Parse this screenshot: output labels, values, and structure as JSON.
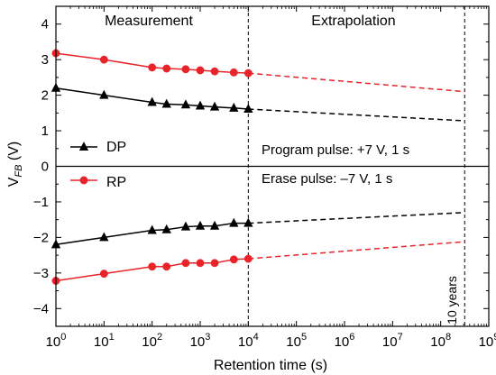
{
  "chart_data": {
    "type": "line",
    "xlabel": "Retention time (s)",
    "ylabel_main": "V",
    "ylabel_sub": "FB",
    "ylabel_unit": " (V)",
    "x_scale": "log",
    "xlim": [
      1,
      1000000000
    ],
    "ylim": [
      -4.5,
      4.5
    ],
    "x_ticks": [
      {
        "base": "10",
        "exp": "0"
      },
      {
        "base": "10",
        "exp": "1"
      },
      {
        "base": "10",
        "exp": "2"
      },
      {
        "base": "10",
        "exp": "3"
      },
      {
        "base": "10",
        "exp": "4"
      },
      {
        "base": "10",
        "exp": "5"
      },
      {
        "base": "10",
        "exp": "6"
      },
      {
        "base": "10",
        "exp": "7"
      },
      {
        "base": "10",
        "exp": "8"
      },
      {
        "base": "10",
        "exp": "9"
      }
    ],
    "y_ticks": [
      "4",
      "3",
      "2",
      "1",
      "0",
      "−1",
      "−2",
      "−3",
      "−4"
    ],
    "y_tick_values": [
      4,
      3,
      2,
      1,
      0,
      -1,
      -2,
      -3,
      -4
    ],
    "grid": false,
    "region_labels": [
      "Measurement",
      "Extrapolation"
    ],
    "divider_x": 10000,
    "ten_year_x": 315360000,
    "ten_year_label": "10 years",
    "annotations": {
      "program": "Program pulse: +7 V, 1 s",
      "erase": "Erase pulse: –7 V, 1 s"
    },
    "legend": [
      {
        "label": "DP",
        "marker": "triangle",
        "color": "#000000"
      },
      {
        "label": "RP",
        "marker": "circle",
        "color": "#e8242a"
      }
    ],
    "x": [
      1,
      10,
      100,
      200,
      500,
      1000,
      2000,
      5000,
      10000
    ],
    "series": [
      {
        "name": "DP",
        "color": "#000000",
        "marker": "triangle",
        "values": [
          2.2,
          2.0,
          1.8,
          1.75,
          1.73,
          1.7,
          1.67,
          1.64,
          1.61
        ],
        "extrapolation": [
          [
            10000,
            1.61
          ],
          [
            315360000,
            1.28
          ]
        ]
      },
      {
        "name": "RP",
        "color": "#e8242a",
        "marker": "circle",
        "values": [
          3.18,
          3.0,
          2.78,
          2.75,
          2.73,
          2.7,
          2.67,
          2.64,
          2.62
        ],
        "extrapolation": [
          [
            10000,
            2.62
          ],
          [
            315360000,
            2.1
          ]
        ]
      },
      {
        "name": "DP",
        "color": "#000000",
        "marker": "triangle",
        "values": [
          -2.2,
          -2.0,
          -1.8,
          -1.78,
          -1.7,
          -1.68,
          -1.68,
          -1.6,
          -1.6
        ],
        "extrapolation": [
          [
            10000,
            -1.6
          ],
          [
            315360000,
            -1.3
          ]
        ]
      },
      {
        "name": "RP",
        "color": "#e8242a",
        "marker": "circle",
        "values": [
          -3.22,
          -3.02,
          -2.82,
          -2.82,
          -2.72,
          -2.72,
          -2.72,
          -2.62,
          -2.6
        ],
        "extrapolation": [
          [
            10000,
            -2.6
          ],
          [
            315360000,
            -2.12
          ]
        ]
      }
    ]
  }
}
